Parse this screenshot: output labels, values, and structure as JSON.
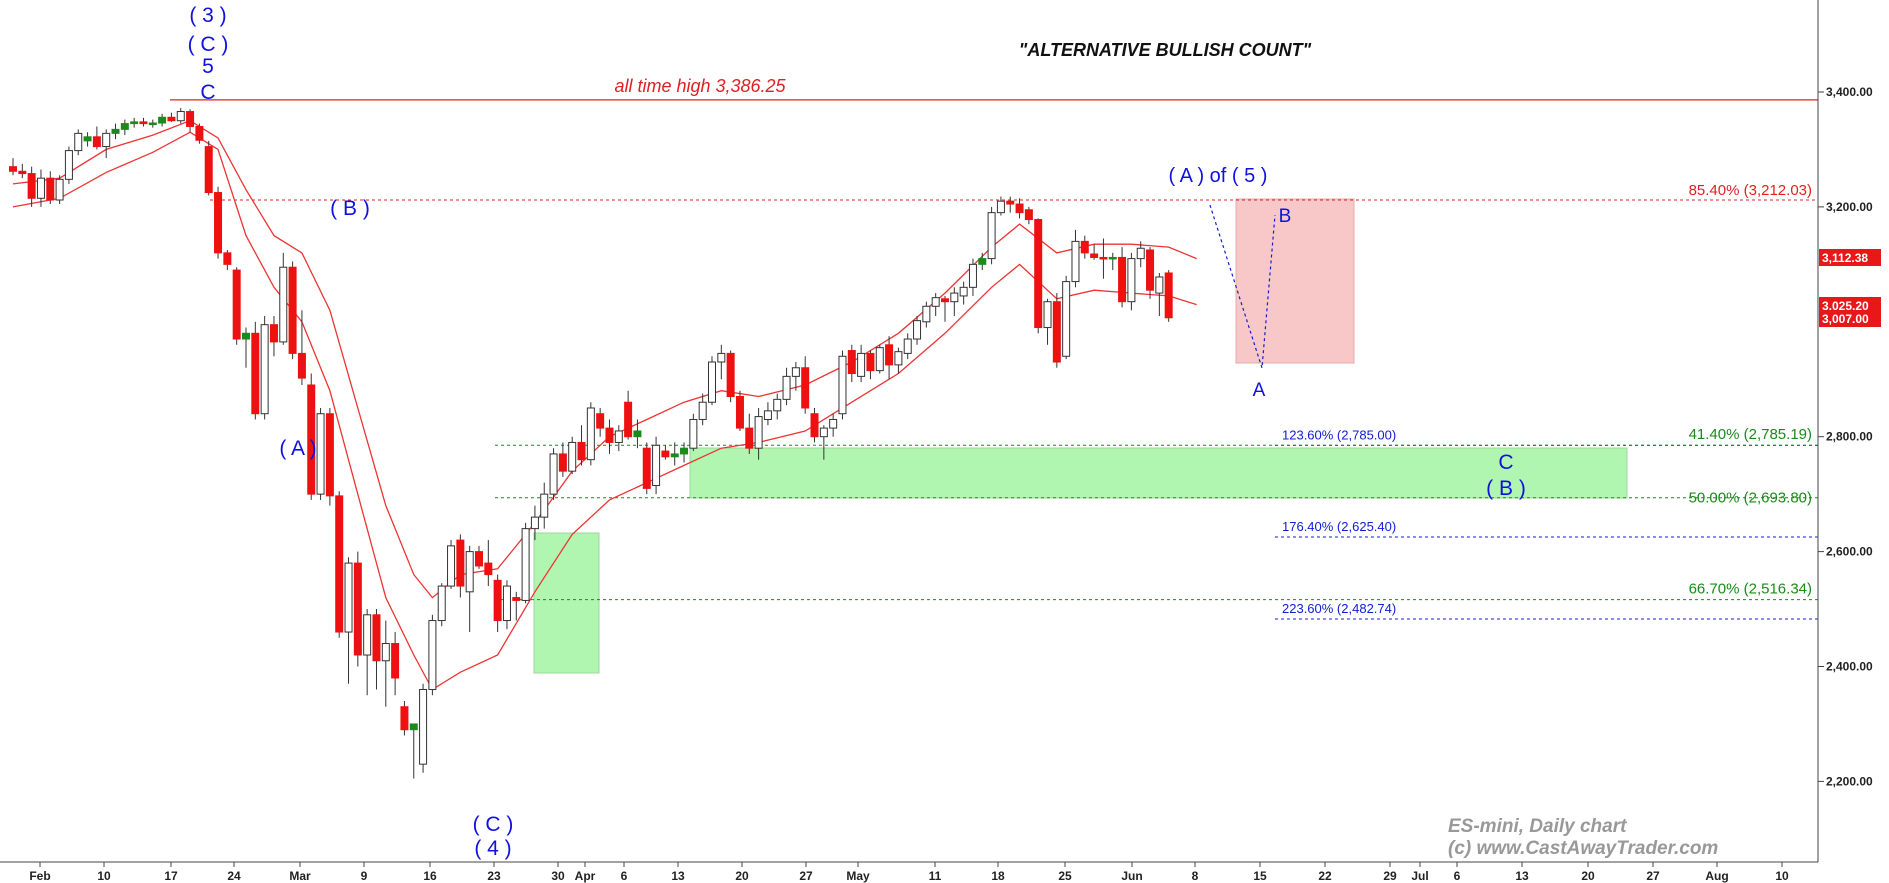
{
  "chart_data": {
    "type": "candlestick",
    "title": "\"ALTERNATIVE BULLISH COUNT\"",
    "instrument_label": "ES-mini, Daily chart",
    "copyright": "(c) www.CastAwayTrader.com",
    "y_axis": {
      "ticks": [
        "3,400.00",
        "3,200.00",
        "2,800.00",
        "2,600.00",
        "2,400.00",
        "2,200.00"
      ],
      "tick_values": [
        3400,
        3200,
        2800,
        2600,
        2400,
        2200
      ],
      "range": [
        2090,
        3550
      ]
    },
    "x_axis": {
      "ticks": [
        "Feb",
        "10",
        "17",
        "24",
        "Mar",
        "9",
        "16",
        "23",
        "30",
        "Apr",
        "6",
        "13",
        "20",
        "27",
        "May",
        "11",
        "18",
        "25",
        "Jun",
        "8",
        "15",
        "22",
        "29",
        "Jul",
        "6",
        "13",
        "20",
        "27",
        "Aug",
        "10"
      ]
    },
    "price_tags": [
      {
        "label": "3,112.38",
        "value": 3112.38
      },
      {
        "label": "3,025.20",
        "value": 3025.2
      },
      {
        "label": "3,007.00",
        "value": 3007.0
      }
    ],
    "all_time_high": {
      "label": "all time high 3,386.25",
      "value": 3386.25
    },
    "levels": [
      {
        "label": "85.40% (3,212.03)",
        "value": 3212.03,
        "color": "#e02020"
      },
      {
        "label": "123.60% (2,785.00)",
        "value": 2785.0,
        "color": "#1020d0"
      },
      {
        "label": "41.40% (2,785.19)",
        "value": 2785.19,
        "color": "#1a8a1a"
      },
      {
        "label": "50.00% (2,693.80)",
        "value": 2693.8,
        "color": "#1a8a1a"
      },
      {
        "label": "176.40% (2,625.40)",
        "value": 2625.4,
        "color": "#1020d0"
      },
      {
        "label": "66.70% (2,516.34)",
        "value": 2516.34,
        "color": "#1a8a1a"
      },
      {
        "label": "223.60% (2,482.74)",
        "value": 2482.74,
        "color": "#1020d0"
      }
    ],
    "wave_labels": [
      "( 3 )",
      "( C )",
      "5",
      "C",
      "( B )",
      "( A )",
      "( C )",
      "( 4 )",
      "( A ) of ( 5 )",
      "B",
      "A",
      "C",
      "( B )"
    ],
    "colors": {
      "up": "#1a8a1a",
      "down": "#ee1111",
      "ma": "#ee3333",
      "wave": "#1010e0",
      "zone": "#b0f5b0",
      "box": "#f8c8c8"
    },
    "candles": [
      [
        3270,
        3285,
        3255,
        3262
      ],
      [
        3262,
        3275,
        3250,
        3258
      ],
      [
        3258,
        3270,
        3200,
        3215
      ],
      [
        3215,
        3265,
        3200,
        3250
      ],
      [
        3250,
        3262,
        3205,
        3212
      ],
      [
        3212,
        3255,
        3205,
        3248
      ],
      [
        3248,
        3305,
        3240,
        3298
      ],
      [
        3298,
        3335,
        3290,
        3328
      ],
      [
        3315,
        3330,
        3305,
        3322
      ],
      [
        3322,
        3340,
        3300,
        3305
      ],
      [
        3305,
        3335,
        3285,
        3328
      ],
      [
        3328,
        3345,
        3318,
        3335
      ],
      [
        3335,
        3352,
        3325,
        3345
      ],
      [
        3345,
        3355,
        3338,
        3348
      ],
      [
        3348,
        3355,
        3340,
        3345
      ],
      [
        3345,
        3352,
        3338,
        3346
      ],
      [
        3346,
        3362,
        3340,
        3356
      ],
      [
        3356,
        3364,
        3348,
        3350
      ],
      [
        3350,
        3372,
        3345,
        3366
      ],
      [
        3366,
        3370,
        3330,
        3340
      ],
      [
        3340,
        3345,
        3310,
        3316
      ],
      [
        3305,
        3315,
        3220,
        3225
      ],
      [
        3225,
        3235,
        3110,
        3120
      ],
      [
        3120,
        3125,
        3090,
        3100
      ],
      [
        3090,
        3095,
        2960,
        2970
      ],
      [
        2970,
        2990,
        2920,
        2980
      ],
      [
        2980,
        3000,
        2830,
        2840
      ],
      [
        2840,
        3010,
        2830,
        2995
      ],
      [
        2995,
        3010,
        2940,
        2965
      ],
      [
        2965,
        3120,
        2960,
        3095
      ],
      [
        3095,
        3105,
        2935,
        2945
      ],
      [
        2945,
        3020,
        2890,
        2902
      ],
      [
        2890,
        2910,
        2690,
        2700
      ],
      [
        2700,
        2850,
        2690,
        2840
      ],
      [
        2840,
        2850,
        2680,
        2697
      ],
      [
        2697,
        2705,
        2450,
        2460
      ],
      [
        2460,
        2590,
        2370,
        2580
      ],
      [
        2580,
        2600,
        2400,
        2420
      ],
      [
        2420,
        2500,
        2350,
        2490
      ],
      [
        2490,
        2500,
        2360,
        2410
      ],
      [
        2410,
        2480,
        2330,
        2440
      ],
      [
        2440,
        2460,
        2350,
        2380
      ],
      [
        2330,
        2340,
        2280,
        2290
      ],
      [
        2290,
        2300,
        2205,
        2300
      ],
      [
        2230,
        2370,
        2215,
        2360
      ],
      [
        2360,
        2490,
        2350,
        2480
      ],
      [
        2480,
        2545,
        2470,
        2540
      ],
      [
        2540,
        2620,
        2535,
        2610
      ],
      [
        2620,
        2630,
        2520,
        2540
      ],
      [
        2530,
        2610,
        2460,
        2600
      ],
      [
        2600,
        2610,
        2570,
        2575
      ],
      [
        2580,
        2620,
        2540,
        2560
      ],
      [
        2550,
        2560,
        2460,
        2480
      ],
      [
        2480,
        2550,
        2465,
        2540
      ],
      [
        2520,
        2530,
        2480,
        2515
      ],
      [
        2515,
        2650,
        2510,
        2640
      ],
      [
        2640,
        2680,
        2620,
        2660
      ],
      [
        2660,
        2720,
        2640,
        2700
      ],
      [
        2700,
        2780,
        2690,
        2770
      ],
      [
        2770,
        2790,
        2730,
        2740
      ],
      [
        2740,
        2800,
        2735,
        2790
      ],
      [
        2790,
        2820,
        2750,
        2760
      ],
      [
        2760,
        2860,
        2750,
        2850
      ],
      [
        2840,
        2850,
        2800,
        2815
      ],
      [
        2815,
        2830,
        2770,
        2790
      ],
      [
        2790,
        2820,
        2775,
        2810
      ],
      [
        2860,
        2880,
        2795,
        2800
      ],
      [
        2800,
        2830,
        2780,
        2810
      ],
      [
        2780,
        2790,
        2700,
        2710
      ],
      [
        2715,
        2800,
        2700,
        2785
      ],
      [
        2775,
        2785,
        2760,
        2765
      ],
      [
        2765,
        2790,
        2750,
        2770
      ],
      [
        2770,
        2790,
        2755,
        2780
      ],
      [
        2780,
        2840,
        2775,
        2830
      ],
      [
        2830,
        2875,
        2820,
        2860
      ],
      [
        2860,
        2940,
        2855,
        2930
      ],
      [
        2930,
        2960,
        2900,
        2945
      ],
      [
        2945,
        2950,
        2860,
        2870
      ],
      [
        2870,
        2880,
        2810,
        2815
      ],
      [
        2815,
        2840,
        2770,
        2780
      ],
      [
        2780,
        2850,
        2760,
        2835
      ],
      [
        2830,
        2860,
        2820,
        2845
      ],
      [
        2845,
        2875,
        2830,
        2865
      ],
      [
        2865,
        2920,
        2855,
        2905
      ],
      [
        2905,
        2930,
        2880,
        2920
      ],
      [
        2920,
        2940,
        2840,
        2850
      ],
      [
        2840,
        2850,
        2790,
        2800
      ],
      [
        2800,
        2820,
        2760,
        2815
      ],
      [
        2815,
        2840,
        2800,
        2830
      ],
      [
        2840,
        2950,
        2830,
        2940
      ],
      [
        2950,
        2960,
        2895,
        2910
      ],
      [
        2905,
        2960,
        2895,
        2945
      ],
      [
        2945,
        2950,
        2900,
        2915
      ],
      [
        2915,
        2960,
        2910,
        2955
      ],
      [
        2960,
        2975,
        2900,
        2925
      ],
      [
        2925,
        2955,
        2910,
        2948
      ],
      [
        2945,
        2980,
        2935,
        2970
      ],
      [
        2970,
        3010,
        2960,
        3002
      ],
      [
        3000,
        3035,
        2990,
        3027
      ],
      [
        3027,
        3050,
        3010,
        3042
      ],
      [
        3040,
        3045,
        3000,
        3035
      ],
      [
        3035,
        3060,
        3010,
        3050
      ],
      [
        3045,
        3070,
        3030,
        3060
      ],
      [
        3060,
        3110,
        3045,
        3100
      ],
      [
        3100,
        3120,
        3090,
        3110
      ],
      [
        3110,
        3200,
        3100,
        3190
      ],
      [
        3190,
        3218,
        3185,
        3210
      ],
      [
        3210,
        3218,
        3190,
        3205
      ],
      [
        3205,
        3215,
        3180,
        3190
      ],
      [
        3195,
        3200,
        3170,
        3178
      ],
      [
        3178,
        3180,
        2980,
        2990
      ],
      [
        2990,
        3040,
        2960,
        3035
      ],
      [
        3035,
        3050,
        2920,
        2930
      ],
      [
        2940,
        3080,
        2935,
        3070
      ],
      [
        3070,
        3160,
        3060,
        3140
      ],
      [
        3140,
        3150,
        3110,
        3120
      ],
      [
        3118,
        3135,
        3108,
        3112
      ],
      [
        3112,
        3145,
        3075,
        3110
      ],
      [
        3110,
        3120,
        3090,
        3112
      ],
      [
        3112,
        3130,
        3025,
        3035
      ],
      [
        3035,
        3120,
        3020,
        3110
      ],
      [
        3110,
        3140,
        3095,
        3128
      ],
      [
        3125,
        3130,
        3040,
        3055
      ],
      [
        3050,
        3085,
        3010,
        3078
      ],
      [
        3085,
        3090,
        3000,
        3007
      ]
    ],
    "ma_upper": [
      [
        0,
        3240
      ],
      [
        5,
        3250
      ],
      [
        10,
        3300
      ],
      [
        15,
        3325
      ],
      [
        19,
        3350
      ],
      [
        22,
        3320
      ],
      [
        25,
        3230
      ],
      [
        28,
        3150
      ],
      [
        31,
        3120
      ],
      [
        34,
        3020
      ],
      [
        37,
        2850
      ],
      [
        40,
        2680
      ],
      [
        43,
        2560
      ],
      [
        45,
        2520
      ],
      [
        48,
        2560
      ],
      [
        52,
        2570
      ],
      [
        56,
        2650
      ],
      [
        60,
        2740
      ],
      [
        64,
        2800
      ],
      [
        68,
        2830
      ],
      [
        72,
        2860
      ],
      [
        76,
        2880
      ],
      [
        80,
        2870
      ],
      [
        85,
        2890
      ],
      [
        90,
        2930
      ],
      [
        95,
        2980
      ],
      [
        100,
        3050
      ],
      [
        105,
        3130
      ],
      [
        108,
        3170
      ],
      [
        112,
        3120
      ],
      [
        116,
        3135
      ],
      [
        120,
        3135
      ],
      [
        124,
        3130
      ],
      [
        127,
        3110
      ]
    ],
    "ma_lower": [
      [
        0,
        3200
      ],
      [
        5,
        3215
      ],
      [
        10,
        3260
      ],
      [
        15,
        3295
      ],
      [
        19,
        3330
      ],
      [
        22,
        3300
      ],
      [
        25,
        3150
      ],
      [
        28,
        3060
      ],
      [
        31,
        3000
      ],
      [
        34,
        2880
      ],
      [
        37,
        2700
      ],
      [
        40,
        2520
      ],
      [
        43,
        2420
      ],
      [
        45,
        2360
      ],
      [
        48,
        2390
      ],
      [
        52,
        2420
      ],
      [
        56,
        2530
      ],
      [
        60,
        2630
      ],
      [
        64,
        2690
      ],
      [
        68,
        2720
      ],
      [
        72,
        2750
      ],
      [
        76,
        2780
      ],
      [
        80,
        2790
      ],
      [
        85,
        2810
      ],
      [
        90,
        2860
      ],
      [
        95,
        2910
      ],
      [
        100,
        2980
      ],
      [
        105,
        3060
      ],
      [
        108,
        3100
      ],
      [
        112,
        3040
      ],
      [
        116,
        3055
      ],
      [
        120,
        3050
      ],
      [
        124,
        3045
      ],
      [
        127,
        3030
      ]
    ]
  }
}
